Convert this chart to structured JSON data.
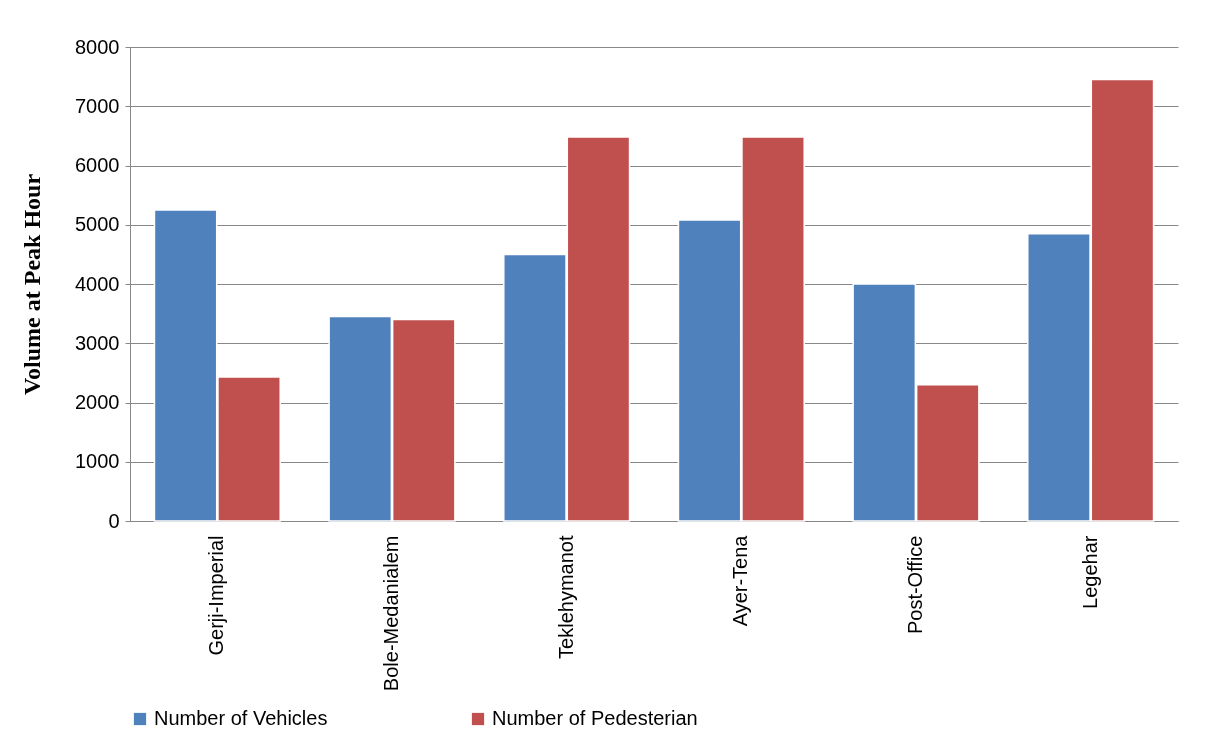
{
  "chart_data": {
    "type": "bar",
    "ylabel": "Volume at  Peak Hour",
    "categories": [
      "Gerji-Imperial",
      "Bole-Medanialem",
      "Teklehymanot",
      "Ayer-Tena",
      "Post-Office",
      "Legehar"
    ],
    "series": [
      {
        "name": "Number of Vehicles",
        "color": "#4f81bd",
        "values": [
          5250,
          3450,
          4500,
          5080,
          4000,
          4850
        ]
      },
      {
        "name": "Number of Pedesterian",
        "color": "#c0504d",
        "values": [
          2430,
          3400,
          6480,
          6480,
          2300,
          7450
        ]
      }
    ],
    "ylim": [
      0,
      8000
    ],
    "yticks": [
      0,
      1000,
      2000,
      3000,
      4000,
      5000,
      6000,
      7000,
      8000
    ],
    "grid": "y",
    "legend": "bottom"
  }
}
